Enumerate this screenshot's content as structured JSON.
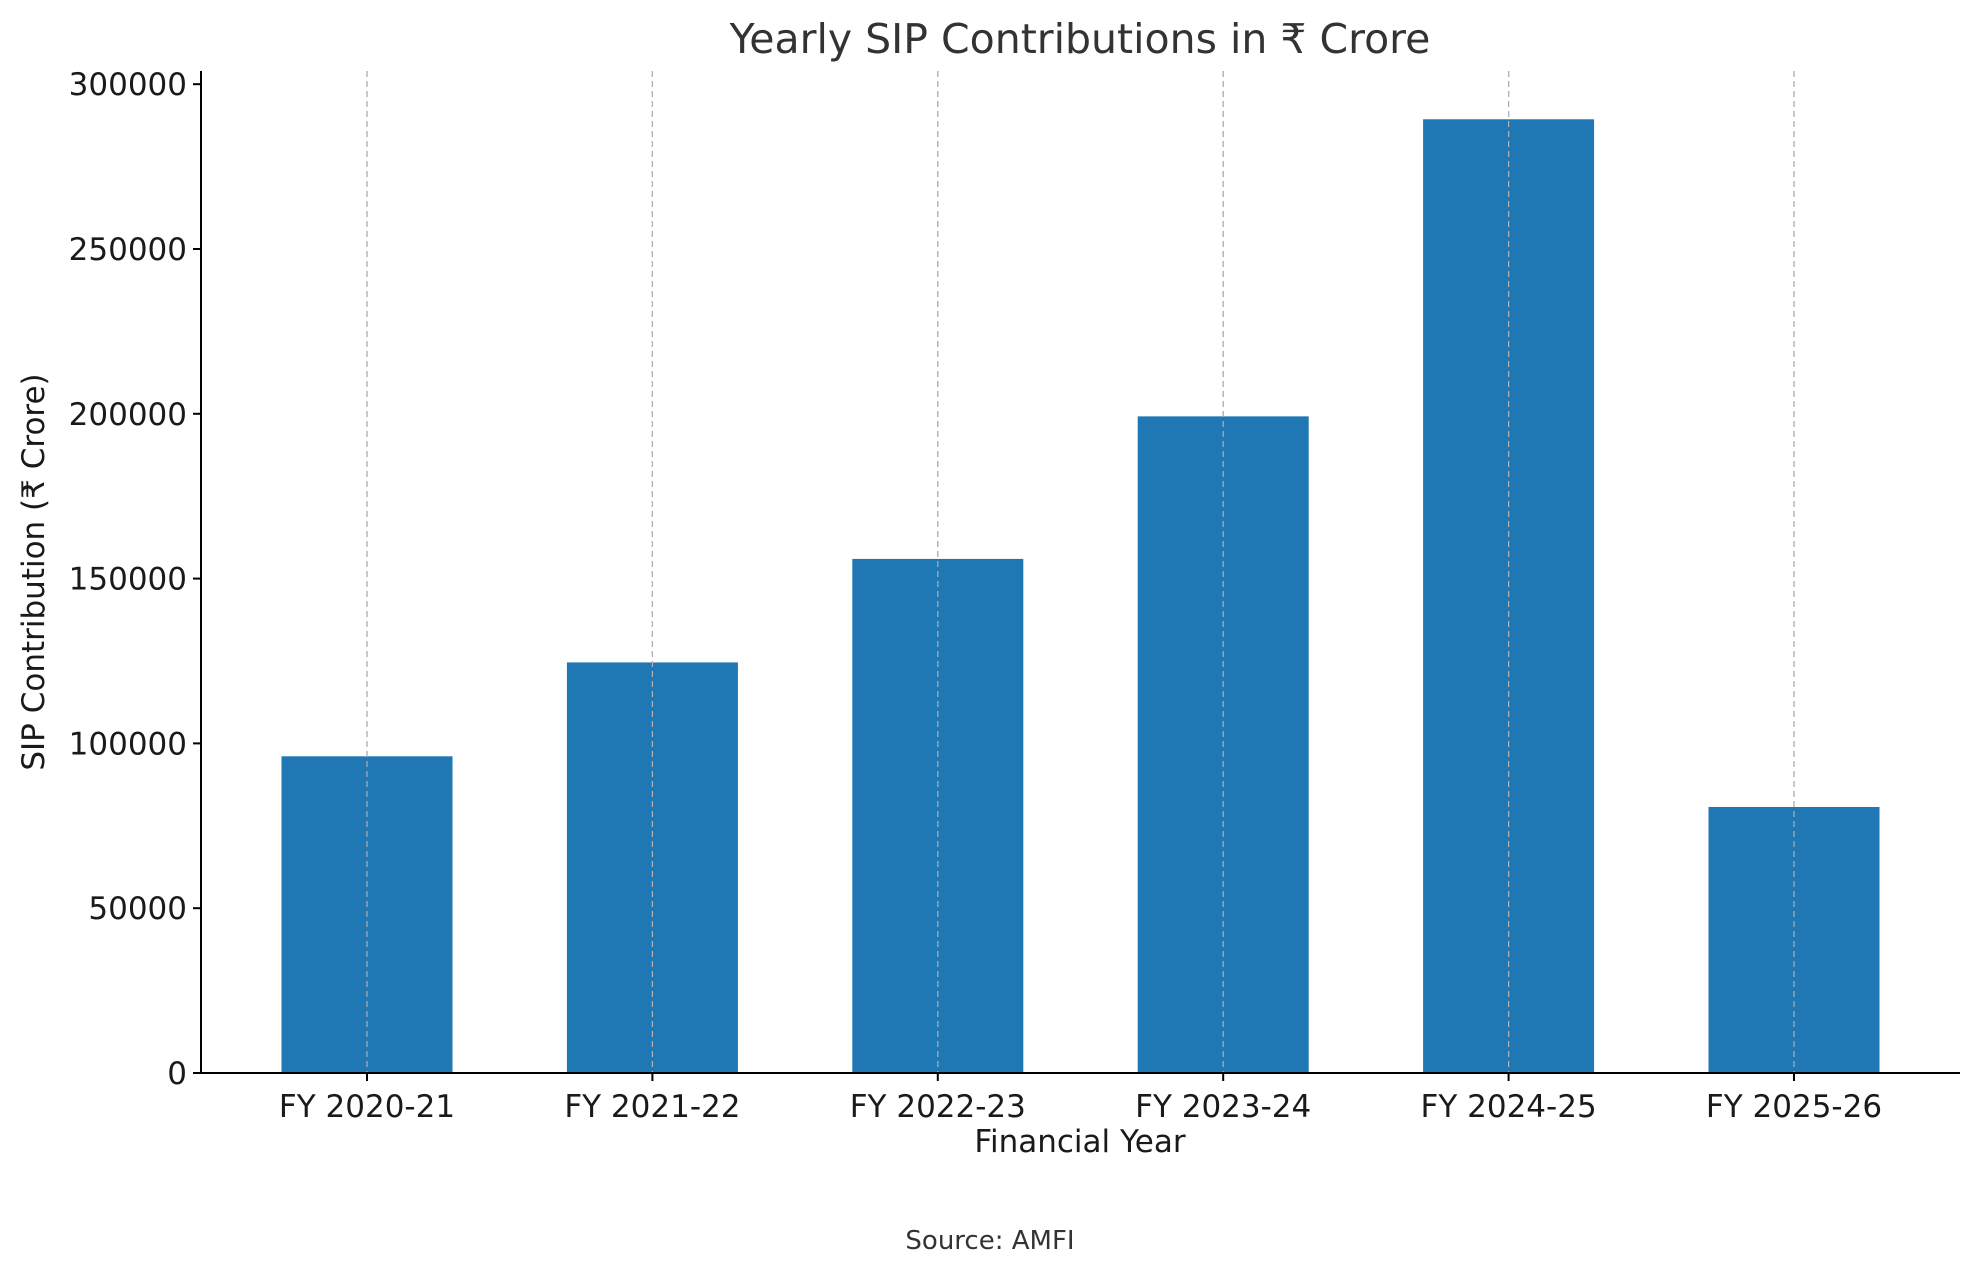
{
  "chart_data": {
    "type": "bar",
    "title": "Yearly SIP Contributions in ₹ Crore",
    "xlabel": "Financial Year",
    "ylabel": "SIP Contribution (₹ Crore)",
    "categories": [
      "FY 2020-21",
      "FY 2021-22",
      "FY 2022-23",
      "FY 2023-24",
      "FY 2024-25",
      "FY 2025-26"
    ],
    "values": [
      96080,
      124566,
      155972,
      199219,
      289352,
      80700
    ],
    "ylim": [
      0,
      304000
    ],
    "yticks": [
      0,
      50000,
      100000,
      150000,
      200000,
      250000,
      300000
    ],
    "grid": "vertical, dashed",
    "bar_color": "#1f77b4",
    "source": "Source: AMFI"
  }
}
